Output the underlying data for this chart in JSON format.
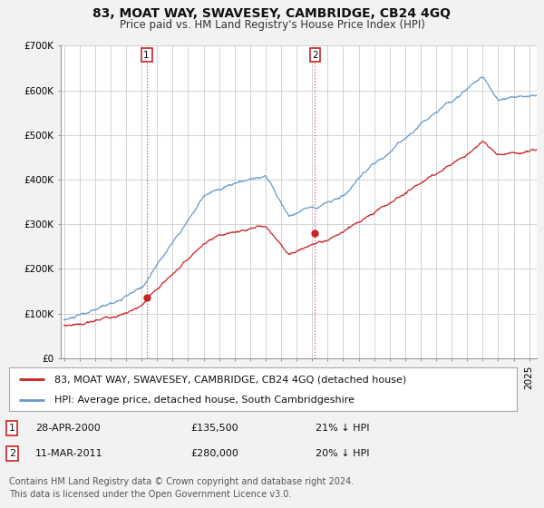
{
  "title": "83, MOAT WAY, SWAVESEY, CAMBRIDGE, CB24 4GQ",
  "subtitle": "Price paid vs. HM Land Registry's House Price Index (HPI)",
  "ylabel_ticks": [
    "£0",
    "£100K",
    "£200K",
    "£300K",
    "£400K",
    "£500K",
    "£600K",
    "£700K"
  ],
  "ytick_values": [
    0,
    100000,
    200000,
    300000,
    400000,
    500000,
    600000,
    700000
  ],
  "ylim": [
    0,
    700000
  ],
  "xlim_start": 1994.8,
  "xlim_end": 2025.5,
  "hpi_color": "#6699cc",
  "price_color": "#cc2222",
  "background_color": "#f2f2f2",
  "plot_bg_color": "#ffffff",
  "grid_color": "#cccccc",
  "sale1": {
    "year": 2000.32,
    "price": 135500,
    "label": "1",
    "date": "28-APR-2000",
    "amount": "£135,500",
    "pct": "21% ↓ HPI"
  },
  "sale2": {
    "year": 2011.19,
    "price": 280000,
    "label": "2",
    "date": "11-MAR-2011",
    "amount": "£280,000",
    "pct": "20% ↓ HPI"
  },
  "legend_line1": "83, MOAT WAY, SWAVESEY, CAMBRIDGE, CB24 4GQ (detached house)",
  "legend_line2": "HPI: Average price, detached house, South Cambridgeshire",
  "footer": "Contains HM Land Registry data © Crown copyright and database right 2024.\nThis data is licensed under the Open Government Licence v3.0.",
  "title_fontsize": 10,
  "subtitle_fontsize": 8.5,
  "tick_fontsize": 7.5,
  "legend_fontsize": 8,
  "ann_fontsize": 8,
  "footer_fontsize": 7
}
